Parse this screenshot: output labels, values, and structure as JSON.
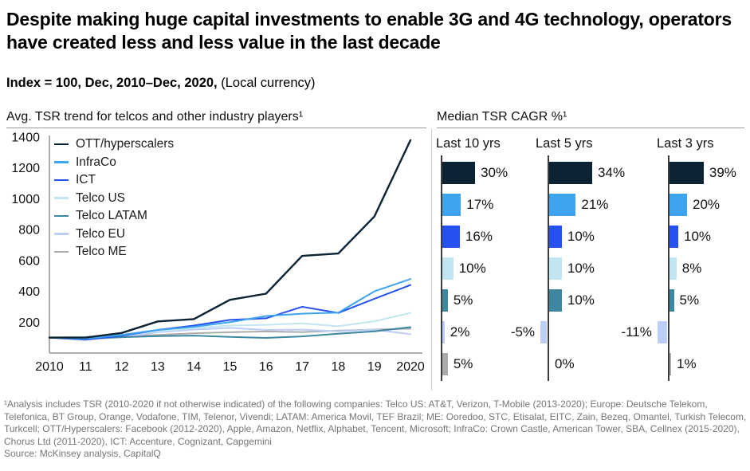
{
  "page": {
    "title": "Despite making huge capital investments to enable 3G and 4G technology, operators have created less and less value in the last decade",
    "subtitle_bold": "Index = 100, Dec, 2010–Dec, 2020,",
    "subtitle_normal": " (Local currency)"
  },
  "panels": {
    "line_header": "Avg. TSR trend for telcos and other industry players¹",
    "bar_header": "Median TSR CAGR %¹"
  },
  "chart_data": [
    {
      "type": "line",
      "title": "Avg. TSR trend for telcos and other industry players",
      "x_tick_labels": [
        "2010",
        "11",
        "12",
        "13",
        "14",
        "15",
        "16",
        "17",
        "18",
        "19",
        "2020"
      ],
      "y_ticks": [
        200,
        400,
        600,
        800,
        1000,
        1200,
        1400
      ],
      "ylim": [
        0,
        1400
      ],
      "grid": false,
      "legend_position": "top-left",
      "series": [
        {
          "name": "OTT/hyperscalers",
          "color": "#0B2332",
          "values": [
            100,
            100,
            130,
            205,
            220,
            345,
            385,
            630,
            645,
            885,
            1380
          ]
        },
        {
          "name": "InfraCo",
          "color": "#3EA4EF",
          "values": [
            100,
            93,
            118,
            150,
            170,
            200,
            240,
            255,
            262,
            400,
            480
          ]
        },
        {
          "name": "ICT",
          "color": "#2551F0",
          "values": [
            100,
            87,
            112,
            150,
            178,
            215,
            225,
            300,
            260,
            352,
            441
          ]
        },
        {
          "name": "Telco US",
          "color": "#C2E6F1",
          "values": [
            100,
            105,
            118,
            140,
            160,
            178,
            183,
            192,
            174,
            206,
            260
          ]
        },
        {
          "name": "Telco LATAM",
          "color": "#3E87A0",
          "values": [
            100,
            95,
            103,
            110,
            113,
            105,
            98,
            108,
            125,
            141,
            168
          ]
        },
        {
          "name": "Telco EU",
          "color": "#BCCDF8",
          "values": [
            100,
            88,
            103,
            135,
            152,
            163,
            150,
            152,
            141,
            152,
            122
          ]
        },
        {
          "name": "Telco ME",
          "color": "#ABABAE",
          "values": [
            100,
            100,
            108,
            118,
            128,
            135,
            140,
            136,
            145,
            152,
            158
          ]
        }
      ]
    },
    {
      "type": "bar",
      "title": "Median TSR CAGR %",
      "orientation": "horizontal",
      "unit": "%",
      "rows": [
        "OTT/hyperscalers",
        "InfraCo",
        "ICT",
        "Telco US",
        "Telco LATAM",
        "Telco EU",
        "Telco ME"
      ],
      "row_colors": [
        "#0B2332",
        "#3EA4EF",
        "#2551F0",
        "#C2E6F1",
        "#3E87A0",
        "#BCCDF8",
        "#ABABAE"
      ],
      "groups": [
        {
          "label": "Last 10 yrs",
          "values": [
            30,
            17,
            16,
            10,
            5,
            2,
            5
          ]
        },
        {
          "label": "Last 5 yrs",
          "values": [
            34,
            21,
            10,
            10,
            10,
            -5,
            0
          ]
        },
        {
          "label": "Last 3 yrs",
          "values": [
            39,
            20,
            10,
            8,
            5,
            -11,
            1
          ]
        }
      ]
    }
  ],
  "footnote": "¹Analysis includes TSR (2010-2020 if not otherwise indicated) of the following companies: Telco US: AT&T, Verizon, T-Mobile (2013-2020); Europe: Deutsche Telekom, Telefonica, BT Group, Orange, Vodafone, TIM, Telenor, Vivendi; LATAM: America Movil, TEF Brazil; ME: Ooredoo, STC, Etisalat, EITC, Zain, Bezeq, Omantel, Turkish Telecom, Turkcell; OTT/Hyperscalers: Facebook (2012-2020), Apple, Amazon, Netflix, Alphabet, Tencent, Microsoft; InfraCo: Crown Castle, American Tower, SBA, Cellnex (2015-2020), Chorus Ltd (2011-2020), ICT: Accenture, Cognizant, Capgemini",
  "source": "Source: McKinsey analysis, CapitalQ"
}
